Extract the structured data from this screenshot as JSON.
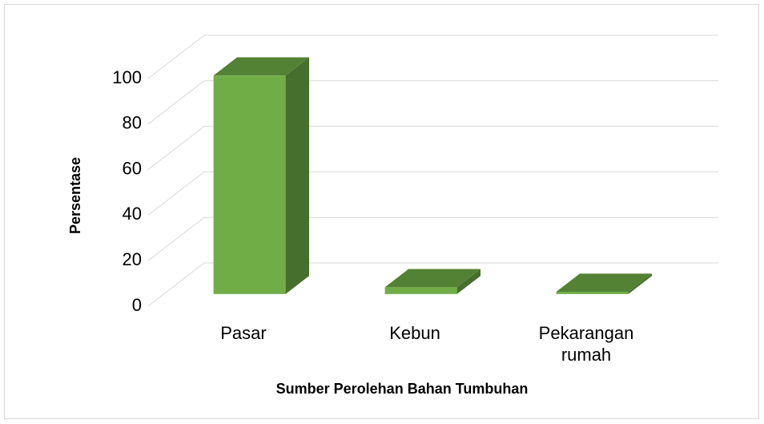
{
  "chart_data": {
    "type": "bar3d",
    "categories": [
      "Pasar",
      "Kebun",
      "Pekarangan rumah"
    ],
    "values": [
      96,
      3,
      1
    ],
    "color": "#70ad47",
    "ylim": [
      0,
      100
    ],
    "yticks": [
      0,
      20,
      40,
      60,
      80,
      100
    ],
    "grid": true,
    "ylabel": "Persentase",
    "xlabel": "Sumber Perolehan Bahan Tumbuhan"
  }
}
